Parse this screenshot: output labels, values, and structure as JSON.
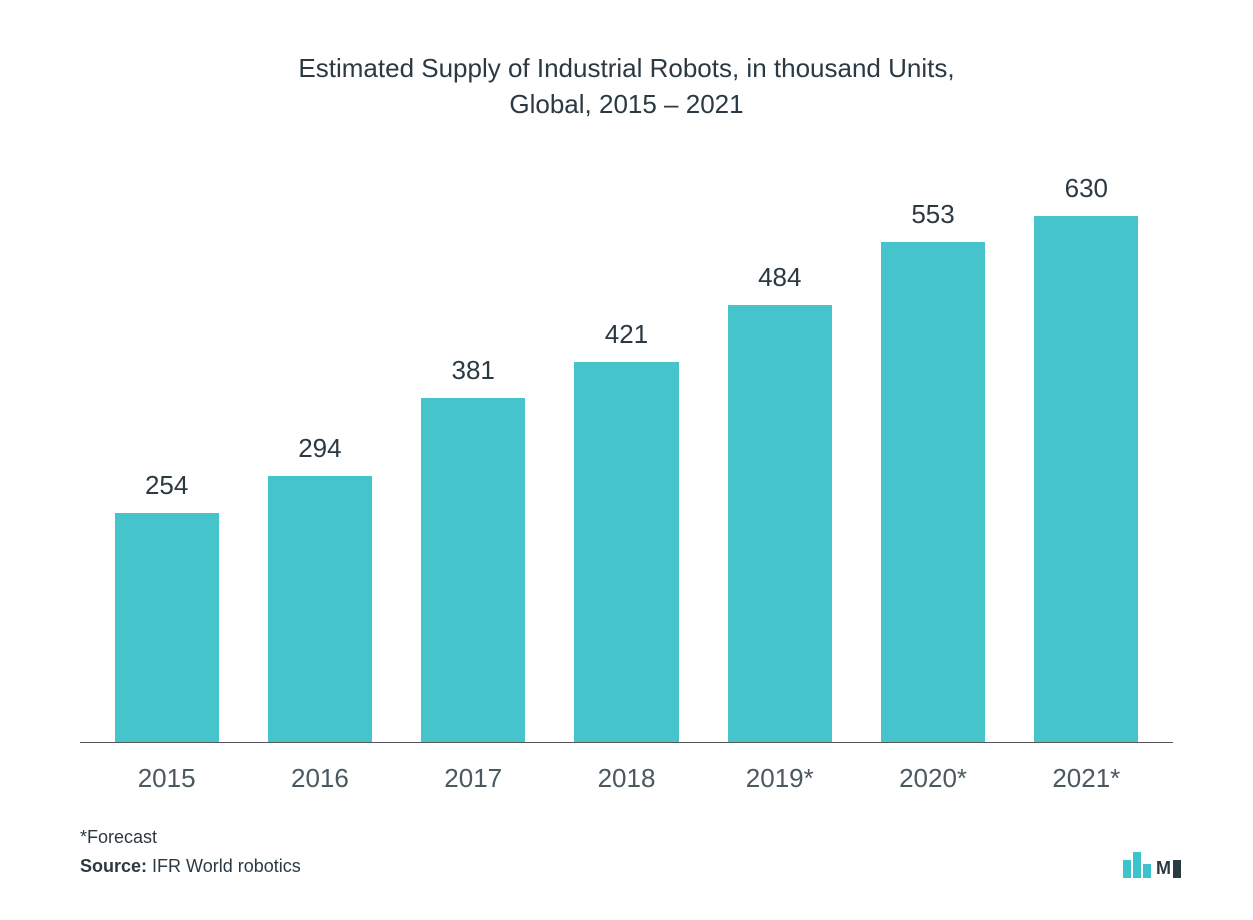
{
  "chart": {
    "type": "bar",
    "title_line1": "Estimated Supply of Industrial Robots, in thousand Units,",
    "title_line2": "Global,  2015 – 2021",
    "title_fontsize": 26,
    "title_color": "#2b3a42",
    "categories": [
      "2015",
      "2016",
      "2017",
      "2018",
      "2019*",
      "2020*",
      "2021*"
    ],
    "values": [
      254,
      294,
      381,
      421,
      484,
      553,
      630
    ],
    "bar_color": "#46c4cb",
    "value_label_color": "#2b3a42",
    "value_label_fontsize": 26,
    "x_label_color": "#4a5860",
    "x_label_fontsize": 26,
    "axis_color": "#555555",
    "background_color": "#ffffff",
    "ylim": [
      0,
      630
    ],
    "bar_width_pct": 68
  },
  "footer": {
    "forecast_note": "*Forecast",
    "source_label": "Source:",
    "source_text": " IFR World robotics",
    "text_color": "#2b3a42",
    "fontsize": 18
  },
  "logo": {
    "bar_color": "#3cc4cc",
    "text": "M",
    "text_mark": "▮",
    "bars": [
      {
        "w": 7,
        "h": 20
      },
      {
        "w": 7,
        "h": 28
      },
      {
        "w": 7,
        "h": 16
      }
    ]
  }
}
